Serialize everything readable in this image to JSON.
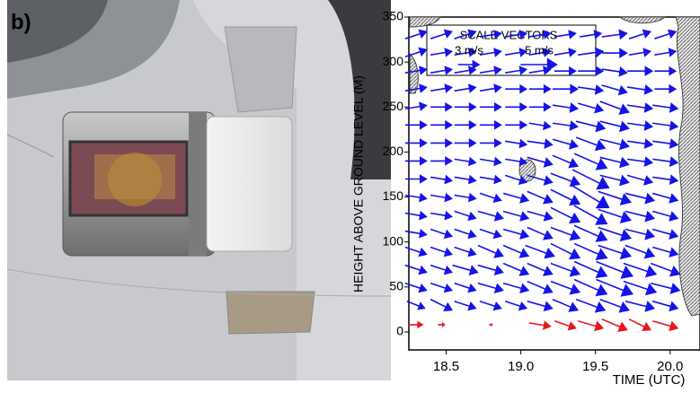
{
  "panel_label": "b)",
  "chart_data": {
    "type": "quiver",
    "x_label": "TIME (UTC)",
    "y_label": "HEIGHT ABOVE GROUND LEVEL (M)",
    "xlim": [
      18.25,
      20.2
    ],
    "ylim": [
      -20,
      350
    ],
    "xticks": [
      18.5,
      {
        "value": 19,
        "label": "19.0"
      },
      19.5,
      {
        "value": 20,
        "label": "20.0"
      }
    ],
    "yticks": [
      0,
      50,
      100,
      150,
      200,
      250,
      300,
      350
    ],
    "legend_title": "SCALE VECTORS",
    "scale_vectors": [
      {
        "label": "3 m/s",
        "value": 3
      },
      {
        "label": "5 m/s",
        "value": 5
      }
    ],
    "times": [
      18.3,
      18.47,
      18.63,
      18.8,
      18.97,
      19.13,
      19.3,
      19.47,
      19.63,
      19.8,
      19.97
    ],
    "rows": [
      {
        "height": 8,
        "color": "#e8141c",
        "u": [
          2,
          1,
          null,
          0.5,
          null,
          3,
          3,
          3.5,
          3.5,
          3,
          3.5
        ],
        "v": [
          0,
          0,
          null,
          0,
          null,
          -0.5,
          -1,
          -1,
          -1.5,
          -1.5,
          -1
        ]
      },
      {
        "height": 30,
        "color": "#1414e6",
        "u": [
          2.5,
          3,
          3,
          3,
          3,
          3.5,
          3.5,
          4,
          4,
          4,
          3.5
        ],
        "v": [
          -1,
          -1.5,
          -1,
          -1,
          -1,
          -1,
          -1.5,
          -1.5,
          -1.5,
          -1,
          -1
        ]
      },
      {
        "height": 50,
        "color": "#1414e6",
        "u": [
          3,
          3,
          3,
          3.5,
          3.5,
          3.5,
          4,
          4.5,
          5,
          4.5,
          4
        ],
        "v": [
          -1,
          -1,
          -1,
          -1,
          -1,
          -1.5,
          -1.5,
          -2,
          -2,
          -1.5,
          -1
        ]
      },
      {
        "height": 70,
        "color": "#1414e6",
        "u": [
          3,
          3,
          3.5,
          3.5,
          3.5,
          3.5,
          4,
          4.5,
          5,
          4.5,
          4
        ],
        "v": [
          -1,
          -1,
          -1,
          -1,
          -1.5,
          -1.5,
          -1.5,
          -2,
          -2,
          -1.5,
          -1.5
        ]
      },
      {
        "height": 90,
        "color": "#1414e6",
        "u": [
          3,
          3,
          3,
          3.5,
          3.5,
          4,
          4,
          4.5,
          4.5,
          4,
          3.5
        ],
        "v": [
          -1,
          -1,
          -1,
          -1.5,
          -1.5,
          -1.5,
          -2,
          -2,
          -1.5,
          -1.5,
          -1
        ]
      },
      {
        "height": 110,
        "color": "#1414e6",
        "u": [
          3,
          3,
          3,
          3,
          3.5,
          3.5,
          4,
          4.5,
          4.5,
          4,
          3.5
        ],
        "v": [
          -0.5,
          -1,
          -1,
          -1,
          -1,
          -1.5,
          -1.5,
          -2,
          -1.5,
          -1,
          -1
        ]
      },
      {
        "height": 130,
        "color": "#1414e6",
        "u": [
          3,
          3,
          3,
          3.5,
          3.5,
          3.5,
          4,
          4.5,
          4.5,
          4,
          3.5
        ],
        "v": [
          -0.5,
          -0.5,
          -1,
          -1,
          -1,
          -1,
          -2,
          -2.5,
          -1.5,
          -1,
          -1
        ]
      },
      {
        "height": 150,
        "color": "#1414e6",
        "u": [
          3,
          3,
          3,
          3,
          3.5,
          3.5,
          4,
          5,
          4.5,
          4,
          3.5
        ],
        "v": [
          -0.5,
          -0.5,
          -0.5,
          -1,
          -1,
          -1.5,
          -2,
          -3,
          -1.5,
          -1,
          -1
        ]
      },
      {
        "height": 170,
        "color": "#1414e6",
        "u": [
          3,
          3,
          3,
          3,
          3,
          3.5,
          4,
          5,
          4,
          3.5,
          3.5
        ],
        "v": [
          0,
          -0.5,
          -0.5,
          -0.5,
          -1,
          -1,
          -1.5,
          -2.5,
          -1,
          -1,
          -0.5
        ]
      },
      {
        "height": 190,
        "color": "#1414e6",
        "u": [
          3,
          3,
          3,
          3,
          3,
          3.5,
          3.5,
          4.5,
          4,
          3.5,
          3.5
        ],
        "v": [
          0,
          0,
          -0.5,
          -0.5,
          -0.5,
          -1,
          -1.5,
          -2,
          -1,
          -0.5,
          -0.5
        ]
      },
      {
        "height": 210,
        "color": "#1414e6",
        "u": [
          3,
          3,
          3,
          3,
          3,
          3.5,
          3.5,
          4,
          4,
          3.5,
          3.5
        ],
        "v": [
          0,
          0,
          0,
          0,
          -0.5,
          -0.5,
          -1,
          -1.5,
          -1,
          -0.5,
          -0.5
        ]
      },
      {
        "height": 230,
        "color": "#1414e6",
        "u": [
          3,
          3,
          3,
          3,
          3,
          3,
          3.5,
          4,
          4,
          3.5,
          3.5
        ],
        "v": [
          0,
          0,
          0,
          0,
          0,
          -0.5,
          -0.5,
          -1,
          -1,
          -0.5,
          -0.5
        ]
      },
      {
        "height": 250,
        "color": "#1414e6",
        "u": [
          3,
          3,
          3,
          3,
          3,
          3,
          3.5,
          3.5,
          4,
          3.5,
          3.5
        ],
        "v": [
          0.5,
          0,
          0,
          0,
          0,
          0,
          -0.5,
          -1,
          -1.5,
          -0.5,
          -0.5
        ]
      },
      {
        "height": 270,
        "color": "#1414e6",
        "u": [
          3,
          3,
          3,
          3,
          3,
          3,
          3.5,
          3.5,
          3.5,
          3.5,
          3
        ],
        "v": [
          0.5,
          0.5,
          0.5,
          0.5,
          0,
          0,
          0,
          -0.5,
          -1,
          -0.5,
          0
        ]
      },
      {
        "height": 290,
        "color": "#1414e6",
        "u": [
          3,
          3,
          3,
          3,
          3,
          3,
          3,
          3.5,
          3.5,
          3.5,
          3
        ],
        "v": [
          0.5,
          0.5,
          0.5,
          0.5,
          0.5,
          0.5,
          0,
          0,
          -0.5,
          0,
          0
        ]
      },
      {
        "height": 310,
        "color": "#1414e6",
        "u": [
          3,
          3,
          3,
          3,
          3,
          3,
          3,
          3.5,
          3.5,
          3,
          3
        ],
        "v": [
          1,
          0.5,
          0.5,
          0.5,
          0.5,
          0.5,
          0.5,
          0.5,
          0,
          0.5,
          0.5
        ]
      },
      {
        "height": 330,
        "color": "#1414e6",
        "u": [
          3,
          3,
          3,
          3,
          3,
          3,
          3,
          3,
          3.5,
          3,
          3
        ],
        "v": [
          1,
          1,
          1,
          0.5,
          0.5,
          0.5,
          0.5,
          0.5,
          0.5,
          1,
          1
        ]
      }
    ]
  }
}
